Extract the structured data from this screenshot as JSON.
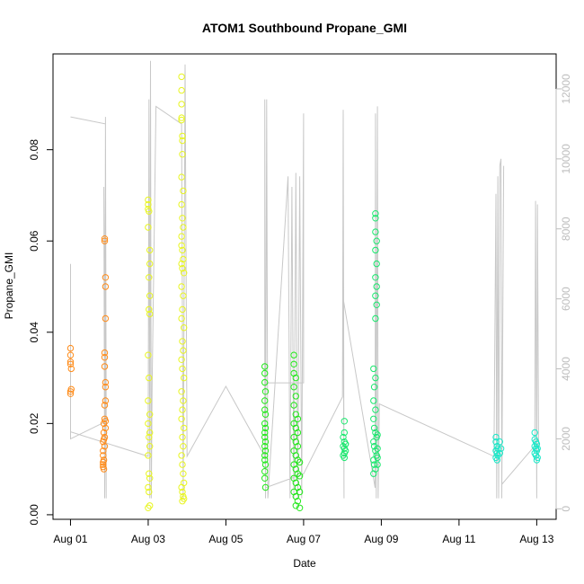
{
  "chart_data": {
    "type": "scatter",
    "title": "ATOM1 Southbound Propane_GMI",
    "xlabel": "Date",
    "ylabel": "Propane_GMI",
    "x_ticks": [
      "Aug 01",
      "Aug 03",
      "Aug 05",
      "Aug 07",
      "Aug 09",
      "Aug 11",
      "Aug 13"
    ],
    "x_tick_values": [
      0,
      2,
      4,
      6,
      8,
      10,
      12
    ],
    "xlim": [
      -0.45,
      12.5
    ],
    "y_ticks": [
      "0.00",
      "0.02",
      "0.04",
      "0.06",
      "0.08"
    ],
    "y_tick_values": [
      0.0,
      0.02,
      0.04,
      0.06,
      0.08
    ],
    "ylim": [
      -0.001,
      0.101
    ],
    "y2_ticks": [
      "0",
      "2000",
      "4000",
      "6000",
      "8000",
      "10000",
      "12000"
    ],
    "y2_tick_values": [
      0,
      2000,
      4000,
      6000,
      8000,
      10000,
      12000
    ],
    "y2lim": [
      -300,
      13000
    ],
    "grid": false,
    "colors": {
      "orange": "#ff8c1a",
      "yellow": "#e8f520",
      "green": "#22e81a",
      "green2": "#1ae86e",
      "cyan": "#1ae8c8",
      "line": "#c8c8c8"
    },
    "series": [
      {
        "color": "orange",
        "points": [
          [
            0.0,
            0.0335
          ],
          [
            0.0,
            0.0365
          ],
          [
            0.0,
            0.035
          ],
          [
            0.0,
            0.033
          ],
          [
            0.02,
            0.032
          ],
          [
            0.02,
            0.0275
          ],
          [
            0.0,
            0.0265
          ],
          [
            0.0,
            0.027
          ],
          [
            0.88,
            0.06
          ],
          [
            0.88,
            0.0605
          ],
          [
            0.9,
            0.052
          ],
          [
            0.9,
            0.05
          ],
          [
            0.9,
            0.043
          ],
          [
            0.88,
            0.0345
          ],
          [
            0.88,
            0.0355
          ],
          [
            0.88,
            0.0325
          ],
          [
            0.9,
            0.029
          ],
          [
            0.9,
            0.028
          ],
          [
            0.9,
            0.025
          ],
          [
            0.88,
            0.024
          ],
          [
            0.88,
            0.021
          ],
          [
            0.86,
            0.02
          ],
          [
            0.9,
            0.019
          ],
          [
            0.86,
            0.018
          ],
          [
            0.86,
            0.0165
          ],
          [
            0.84,
            0.016
          ],
          [
            0.88,
            0.015
          ],
          [
            0.84,
            0.014
          ],
          [
            0.84,
            0.013
          ],
          [
            0.86,
            0.012
          ],
          [
            0.84,
            0.0115
          ],
          [
            0.84,
            0.011
          ],
          [
            0.84,
            0.0105
          ],
          [
            0.86,
            0.01
          ],
          [
            0.88,
            0.017
          ],
          [
            0.9,
            0.0205
          ]
        ]
      },
      {
        "color": "yellow",
        "points": [
          [
            2.0,
            0.069
          ],
          [
            2.0,
            0.068
          ],
          [
            2.0,
            0.067
          ],
          [
            2.02,
            0.0665
          ],
          [
            2.0,
            0.063
          ],
          [
            2.04,
            0.058
          ],
          [
            2.04,
            0.055
          ],
          [
            2.02,
            0.052
          ],
          [
            2.04,
            0.048
          ],
          [
            2.02,
            0.045
          ],
          [
            2.04,
            0.044
          ],
          [
            2.0,
            0.035
          ],
          [
            2.02,
            0.03
          ],
          [
            2.0,
            0.025
          ],
          [
            2.04,
            0.022
          ],
          [
            2.0,
            0.02
          ],
          [
            2.04,
            0.018
          ],
          [
            2.02,
            0.017
          ],
          [
            2.04,
            0.015
          ],
          [
            2.0,
            0.013
          ],
          [
            2.02,
            0.009
          ],
          [
            2.04,
            0.008
          ],
          [
            2.0,
            0.006
          ],
          [
            2.02,
            0.005
          ],
          [
            2.04,
            0.002
          ],
          [
            2.0,
            0.0015
          ],
          [
            2.86,
            0.096
          ],
          [
            2.86,
            0.093
          ],
          [
            2.86,
            0.09
          ],
          [
            2.86,
            0.087
          ],
          [
            2.86,
            0.0865
          ],
          [
            2.88,
            0.083
          ],
          [
            2.88,
            0.082
          ],
          [
            2.88,
            0.079
          ],
          [
            2.86,
            0.074
          ],
          [
            2.9,
            0.071
          ],
          [
            2.86,
            0.068
          ],
          [
            2.88,
            0.065
          ],
          [
            2.9,
            0.063
          ],
          [
            2.86,
            0.061
          ],
          [
            2.86,
            0.059
          ],
          [
            2.88,
            0.058
          ],
          [
            2.9,
            0.056
          ],
          [
            2.86,
            0.055
          ],
          [
            2.88,
            0.054
          ],
          [
            2.92,
            0.053
          ],
          [
            2.86,
            0.05
          ],
          [
            2.9,
            0.048
          ],
          [
            2.88,
            0.045
          ],
          [
            2.86,
            0.043
          ],
          [
            2.92,
            0.041
          ],
          [
            2.88,
            0.038
          ],
          [
            2.9,
            0.036
          ],
          [
            2.86,
            0.034
          ],
          [
            2.88,
            0.032
          ],
          [
            2.92,
            0.03
          ],
          [
            2.86,
            0.027
          ],
          [
            2.9,
            0.025
          ],
          [
            2.88,
            0.023
          ],
          [
            2.86,
            0.021
          ],
          [
            2.92,
            0.019
          ],
          [
            2.88,
            0.017
          ],
          [
            2.9,
            0.015
          ],
          [
            2.86,
            0.013
          ],
          [
            2.88,
            0.011
          ],
          [
            2.9,
            0.009
          ],
          [
            2.92,
            0.007
          ],
          [
            2.86,
            0.006
          ],
          [
            2.88,
            0.005
          ],
          [
            2.9,
            0.004
          ],
          [
            2.92,
            0.0035
          ],
          [
            2.88,
            0.003
          ]
        ]
      },
      {
        "color": "green",
        "points": [
          [
            5.0,
            0.0325
          ],
          [
            5.0,
            0.031
          ],
          [
            5.0,
            0.029
          ],
          [
            5.02,
            0.027
          ],
          [
            5.0,
            0.025
          ],
          [
            5.0,
            0.023
          ],
          [
            5.02,
            0.022
          ],
          [
            5.0,
            0.02
          ],
          [
            5.02,
            0.019
          ],
          [
            5.0,
            0.018
          ],
          [
            5.0,
            0.017
          ],
          [
            5.02,
            0.016
          ],
          [
            5.0,
            0.015
          ],
          [
            5.02,
            0.014
          ],
          [
            5.0,
            0.013
          ],
          [
            5.0,
            0.012
          ],
          [
            5.02,
            0.011
          ],
          [
            5.0,
            0.0095
          ],
          [
            5.0,
            0.008
          ],
          [
            5.02,
            0.006
          ],
          [
            5.75,
            0.035
          ],
          [
            5.75,
            0.033
          ],
          [
            5.75,
            0.031
          ],
          [
            5.8,
            0.03
          ],
          [
            5.75,
            0.028
          ],
          [
            5.8,
            0.026
          ],
          [
            5.75,
            0.024
          ],
          [
            5.8,
            0.022
          ],
          [
            5.85,
            0.021
          ],
          [
            5.75,
            0.02
          ],
          [
            5.8,
            0.019
          ],
          [
            5.85,
            0.018
          ],
          [
            5.75,
            0.017
          ],
          [
            5.8,
            0.016
          ],
          [
            5.85,
            0.015
          ],
          [
            5.75,
            0.014
          ],
          [
            5.8,
            0.013
          ],
          [
            5.85,
            0.012
          ],
          [
            5.75,
            0.011
          ],
          [
            5.8,
            0.01
          ],
          [
            5.85,
            0.009
          ],
          [
            5.75,
            0.008
          ],
          [
            5.8,
            0.007
          ],
          [
            5.85,
            0.006
          ],
          [
            5.75,
            0.005
          ],
          [
            5.8,
            0.004
          ],
          [
            5.85,
            0.003
          ],
          [
            5.8,
            0.002
          ],
          [
            5.9,
            0.0015
          ],
          [
            5.9,
            0.0115
          ],
          [
            5.9,
            0.0085
          ],
          [
            5.9,
            0.005
          ]
        ]
      },
      {
        "color": "green2",
        "points": [
          [
            7.05,
            0.0205
          ],
          [
            7.05,
            0.018
          ],
          [
            7.02,
            0.017
          ],
          [
            7.05,
            0.016
          ],
          [
            7.08,
            0.0155
          ],
          [
            7.02,
            0.015
          ],
          [
            7.05,
            0.0145
          ],
          [
            7.08,
            0.014
          ],
          [
            7.05,
            0.0135
          ],
          [
            7.02,
            0.013
          ],
          [
            7.05,
            0.0125
          ],
          [
            7.08,
            0.0155
          ],
          [
            7.85,
            0.066
          ],
          [
            7.85,
            0.065
          ],
          [
            7.85,
            0.062
          ],
          [
            7.88,
            0.06
          ],
          [
            7.85,
            0.058
          ],
          [
            7.88,
            0.055
          ],
          [
            7.85,
            0.052
          ],
          [
            7.88,
            0.05
          ],
          [
            7.85,
            0.048
          ],
          [
            7.88,
            0.046
          ],
          [
            7.85,
            0.043
          ],
          [
            7.8,
            0.032
          ],
          [
            7.85,
            0.03
          ],
          [
            7.82,
            0.028
          ],
          [
            7.8,
            0.025
          ],
          [
            7.85,
            0.023
          ],
          [
            7.8,
            0.021
          ],
          [
            7.82,
            0.019
          ],
          [
            7.85,
            0.018
          ],
          [
            7.88,
            0.017
          ],
          [
            7.8,
            0.016
          ],
          [
            7.82,
            0.015
          ],
          [
            7.85,
            0.014
          ],
          [
            7.88,
            0.013
          ],
          [
            7.8,
            0.012
          ],
          [
            7.82,
            0.011
          ],
          [
            7.85,
            0.01
          ],
          [
            7.8,
            0.009
          ],
          [
            7.9,
            0.0175
          ],
          [
            7.9,
            0.0145
          ],
          [
            7.9,
            0.0125
          ],
          [
            7.9,
            0.011
          ]
        ]
      },
      {
        "color": "cyan",
        "points": [
          [
            10.95,
            0.017
          ],
          [
            10.95,
            0.016
          ],
          [
            10.98,
            0.015
          ],
          [
            11.0,
            0.0145
          ],
          [
            10.95,
            0.014
          ],
          [
            10.98,
            0.0135
          ],
          [
            11.0,
            0.013
          ],
          [
            10.95,
            0.0125
          ],
          [
            10.98,
            0.012
          ],
          [
            11.05,
            0.016
          ],
          [
            11.05,
            0.0135
          ],
          [
            11.08,
            0.0145
          ],
          [
            11.95,
            0.018
          ],
          [
            11.95,
            0.0165
          ],
          [
            11.98,
            0.016
          ],
          [
            12.0,
            0.0155
          ],
          [
            11.95,
            0.015
          ],
          [
            11.98,
            0.0145
          ],
          [
            12.0,
            0.014
          ],
          [
            11.95,
            0.0135
          ],
          [
            11.98,
            0.013
          ],
          [
            12.02,
            0.0125
          ],
          [
            12.0,
            0.012
          ],
          [
            12.02,
            0.0145
          ]
        ]
      }
    ],
    "secondary_series": {
      "axis": "right",
      "color": "line",
      "polyline": [
        [
          0.0,
          11200
        ],
        [
          0.9,
          11000
        ],
        [
          0.88,
          300
        ],
        [
          0.9,
          9500
        ],
        [
          0.92,
          300
        ],
        [
          0.86,
          9200
        ],
        [
          0.88,
          300
        ],
        [
          0.9,
          11200
        ],
        [
          0.92,
          2500
        ],
        [
          0.0,
          2000
        ],
        [
          0.0,
          7000
        ],
        [
          0.0,
          2200
        ],
        [
          2.0,
          1500
        ],
        [
          2.02,
          11700
        ],
        [
          2.04,
          300
        ],
        [
          2.06,
          12800
        ],
        [
          2.08,
          300
        ],
        [
          2.1,
          3500
        ],
        [
          2.2,
          11500
        ],
        [
          2.86,
          11000
        ],
        [
          2.9,
          300
        ],
        [
          2.95,
          12700
        ],
        [
          3.0,
          1500
        ],
        [
          4.0,
          3500
        ],
        [
          5.0,
          1500
        ],
        [
          5.0,
          11700
        ],
        [
          5.02,
          300
        ],
        [
          5.05,
          11700
        ],
        [
          5.08,
          300
        ],
        [
          5.6,
          9500
        ],
        [
          5.65,
          300
        ],
        [
          5.7,
          9200
        ],
        [
          5.75,
          300
        ],
        [
          5.8,
          9600
        ],
        [
          5.85,
          300
        ],
        [
          5.9,
          9500
        ],
        [
          5.95,
          300
        ],
        [
          6.0,
          11300
        ],
        [
          6.0,
          3600
        ],
        [
          5.0,
          3600
        ],
        [
          5.02,
          600
        ],
        [
          6.0,
          1000
        ],
        [
          7.0,
          3200
        ],
        [
          7.02,
          11400
        ],
        [
          7.04,
          300
        ],
        [
          7.02,
          6000
        ],
        [
          7.84,
          600
        ],
        [
          7.85,
          11300
        ],
        [
          7.87,
          300
        ],
        [
          7.9,
          11500
        ],
        [
          7.92,
          300
        ],
        [
          7.95,
          3000
        ],
        [
          10.9,
          1500
        ],
        [
          10.95,
          9000
        ],
        [
          10.97,
          300
        ],
        [
          11.0,
          9500
        ],
        [
          11.02,
          300
        ],
        [
          11.05,
          9800
        ],
        [
          11.08,
          10000
        ],
        [
          11.1,
          300
        ],
        [
          11.15,
          9800
        ],
        [
          11.1,
          700
        ],
        [
          11.95,
          1800
        ],
        [
          11.97,
          8800
        ],
        [
          12.0,
          300
        ],
        [
          12.02,
          8700
        ],
        [
          12.05,
          1600
        ]
      ]
    }
  }
}
